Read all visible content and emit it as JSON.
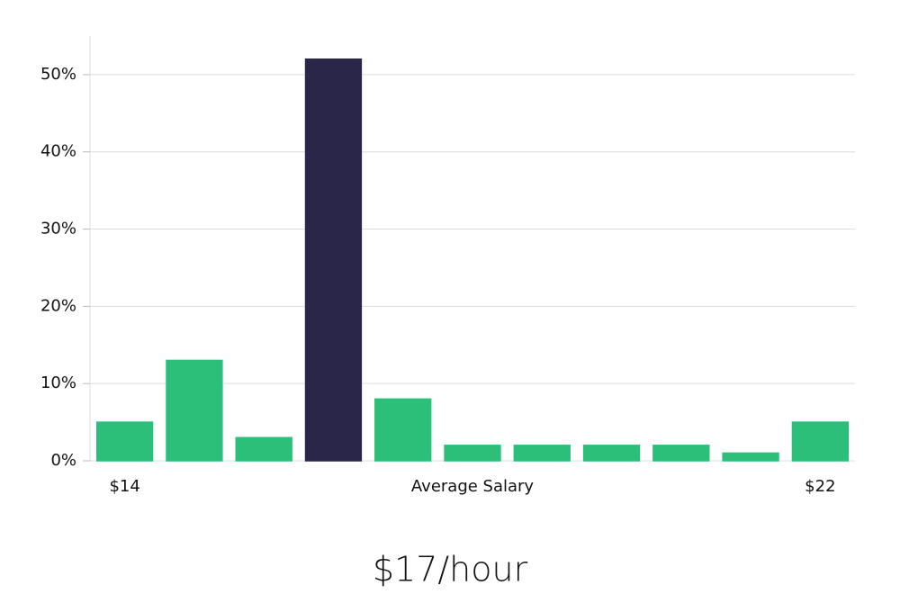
{
  "chart_data": {
    "type": "bar",
    "categories": [
      "$14",
      null,
      null,
      null,
      null,
      null,
      null,
      null,
      null,
      null,
      "$22"
    ],
    "values": [
      5,
      13,
      3,
      52,
      8,
      2,
      2,
      2,
      2,
      1,
      5
    ],
    "colors": [
      "#2bbf7a",
      "#2bbf7a",
      "#2bbf7a",
      "#29264a",
      "#2bbf7a",
      "#2bbf7a",
      "#2bbf7a",
      "#2bbf7a",
      "#2bbf7a",
      "#2bbf7a",
      "#2bbf7a"
    ],
    "x_label": "Average Salary",
    "annotation": "$17/hour",
    "ylim": [
      0,
      55
    ],
    "yticks": [
      {
        "value": 0,
        "label": "0%"
      },
      {
        "value": 10,
        "label": "10%"
      },
      {
        "value": 20,
        "label": "20%"
      },
      {
        "value": 30,
        "label": "30%"
      },
      {
        "value": 40,
        "label": "40%"
      },
      {
        "value": 50,
        "label": "50%"
      }
    ],
    "grid": true
  }
}
